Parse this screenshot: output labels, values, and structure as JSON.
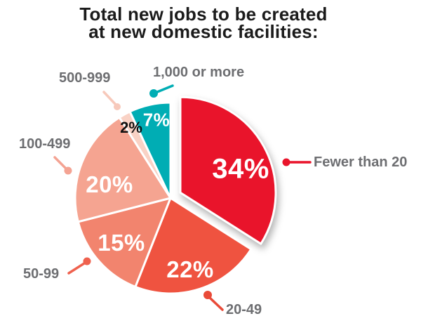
{
  "title": {
    "line1": "Total new jobs to be created",
    "line2": "at new domestic facilities:"
  },
  "chart_data": {
    "type": "pie",
    "title": "Total new jobs to be created at new domestic facilities:",
    "unit": "percent",
    "start_angle_deg": 0,
    "direction": "clockwise",
    "legend_position": "callout-labels-around-pie",
    "background": "#FFFFFF",
    "category_label_color": "#6D6E71",
    "title_color": "#1B1B1B",
    "slices": [
      {
        "label": "Fewer than 20",
        "value": 34,
        "pct_label": "34%",
        "color": "#E9142B",
        "callout_color": "#E9142B",
        "exploded": true,
        "value_text_color": "#FFFFFF"
      },
      {
        "label": "20-49",
        "value": 22,
        "pct_label": "22%",
        "color": "#EF5340",
        "callout_color": "#E94A38",
        "exploded": false,
        "value_text_color": "#FFFFFF"
      },
      {
        "label": "50-99",
        "value": 15,
        "pct_label": "15%",
        "color": "#F2846E",
        "callout_color": "#EF614E",
        "exploded": false,
        "value_text_color": "#FFFFFF"
      },
      {
        "label": "100-499",
        "value": 20,
        "pct_label": "20%",
        "color": "#F5A491",
        "callout_color": "#F4A393",
        "exploded": false,
        "value_text_color": "#FFFFFF"
      },
      {
        "label": "500-999",
        "value": 2,
        "pct_label": "2%",
        "color": "#F9D2C5",
        "callout_color": "#F7C9BB",
        "exploded": false,
        "value_text_color": "#111111"
      },
      {
        "label": "1,000 or more",
        "value": 7,
        "pct_label": "7%",
        "color": "#00ADB4",
        "callout_color": "#00ADB4",
        "exploded": false,
        "value_text_color": "#FFFFFF"
      }
    ]
  }
}
